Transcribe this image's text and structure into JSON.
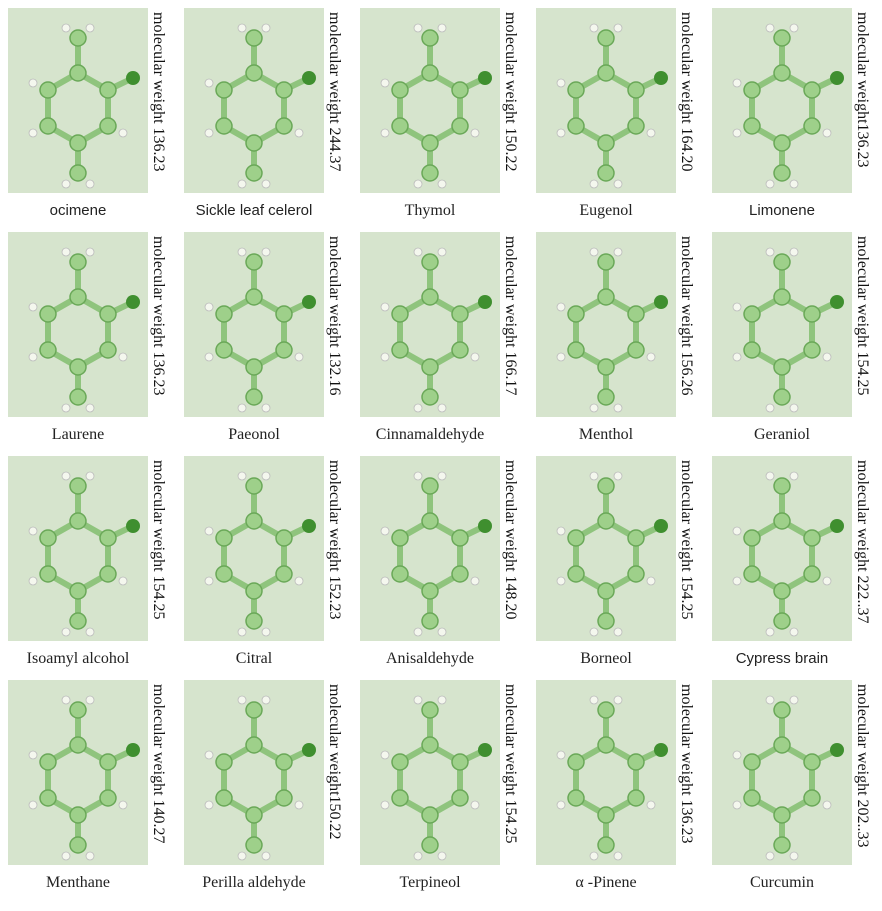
{
  "cells": [
    {
      "name": "ocimene",
      "weight": "molecular weight 136.23"
    },
    {
      "name": "Sickle leaf celerol",
      "weight": "molecular weight 244.37"
    },
    {
      "name": "Thymol",
      "weight": "molecular weight 150.22"
    },
    {
      "name": "Eugenol",
      "weight": "molecular weight 164.20"
    },
    {
      "name": "Limonene",
      "weight": "molecular weight136.23"
    },
    {
      "name": "Laurene",
      "weight": "molecular weight 136.23"
    },
    {
      "name": "Paeonol",
      "weight": "molecular weight 132.16"
    },
    {
      "name": "Cinnamaldehyde",
      "weight": "molecular weight 166.17"
    },
    {
      "name": "Menthol",
      "weight": "molecular weight 156.26"
    },
    {
      "name": "Geraniol",
      "weight": "molecular weight 154.25"
    },
    {
      "name": "Isoamyl alcohol",
      "weight": "molecular weight 154.25"
    },
    {
      "name": "Citral",
      "weight": "molecular weight 152.23"
    },
    {
      "name": "Anisaldehyde",
      "weight": "molecular weight 148.20"
    },
    {
      "name": "Borneol",
      "weight": "molecular weight 154.25"
    },
    {
      "name": "Cypress brain",
      "weight": "molecular weight 222..37"
    },
    {
      "name": "Menthane",
      "weight": "molecular weight 140.27"
    },
    {
      "name": "Perilla aldehyde",
      "weight": "molecular weight150.22"
    },
    {
      "name": "Terpineol",
      "weight": "molecular weight 154.25"
    },
    {
      "name": "α -Pinene",
      "weight": "molecular weight 136.23"
    },
    {
      "name": "Curcumin",
      "weight": "molecular weight 202..33"
    }
  ]
}
